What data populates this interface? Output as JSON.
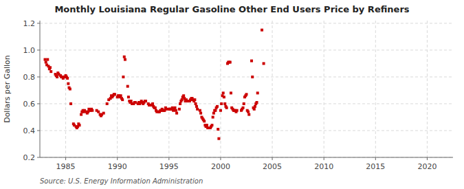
{
  "chart_data": {
    "type": "scatter",
    "title": "Monthly Louisiana Regular Gasoline Other End Users Price by Refiners",
    "y_label": "Dollars per Gallon",
    "source": "Source: U.S. Energy Information Administration",
    "color": "#cc0000",
    "marker": "square",
    "grid": true,
    "xlim": [
      1982.5,
      2022.5
    ],
    "ylim": [
      0.2,
      1.22
    ],
    "xticks": [
      1985,
      1990,
      1995,
      2000,
      2005,
      2010,
      2015,
      2020
    ],
    "yticks": [
      0.2,
      0.4,
      0.6,
      0.8,
      {
        "value": 1.0,
        "label": "1.0"
      },
      1.2
    ],
    "x": [
      1983.0,
      1983.08,
      1983.17,
      1983.25,
      1983.33,
      1983.42,
      1983.5,
      1983.58,
      1984.0,
      1984.08,
      1984.17,
      1984.25,
      1984.33,
      1984.5,
      1984.58,
      1984.67,
      1984.75,
      1984.83,
      1984.92,
      1985.0,
      1985.08,
      1985.17,
      1985.25,
      1985.33,
      1985.42,
      1985.5,
      1985.75,
      1985.83,
      1986.0,
      1986.08,
      1986.17,
      1986.25,
      1986.33,
      1986.5,
      1986.58,
      1986.67,
      1986.75,
      1986.83,
      1987.0,
      1987.08,
      1987.17,
      1987.25,
      1987.33,
      1987.42,
      1987.5,
      1987.58,
      1988.0,
      1988.17,
      1988.33,
      1988.42,
      1988.5,
      1988.67,
      1989.0,
      1989.17,
      1989.33,
      1989.42,
      1989.5,
      1989.58,
      1989.67,
      1989.75,
      1990.0,
      1990.08,
      1990.17,
      1990.25,
      1990.33,
      1990.42,
      1990.5,
      1990.58,
      1990.67,
      1990.75,
      1991.0,
      1991.08,
      1991.17,
      1991.25,
      1991.33,
      1991.42,
      1991.5,
      1991.58,
      1991.67,
      1991.75,
      1992.0,
      1992.08,
      1992.17,
      1992.25,
      1992.33,
      1992.42,
      1992.5,
      1992.58,
      1992.67,
      1992.75,
      1993.0,
      1993.08,
      1993.17,
      1993.25,
      1993.33,
      1993.42,
      1993.5,
      1993.58,
      1993.67,
      1993.75,
      1993.83,
      1994.0,
      1994.08,
      1994.17,
      1994.25,
      1994.33,
      1994.42,
      1994.5,
      1994.58,
      1994.67,
      1994.75,
      1995.0,
      1995.08,
      1995.17,
      1995.25,
      1995.33,
      1995.42,
      1995.5,
      1995.58,
      1995.67,
      1995.75,
      1996.0,
      1996.08,
      1996.17,
      1996.25,
      1996.33,
      1996.42,
      1996.5,
      1996.58,
      1996.67,
      1996.75,
      1997.0,
      1997.08,
      1997.17,
      1997.25,
      1997.33,
      1997.42,
      1997.5,
      1997.58,
      1997.67,
      1997.75,
      1998.0,
      1998.08,
      1998.17,
      1998.25,
      1998.33,
      1998.42,
      1998.5,
      1998.58,
      1998.67,
      1998.75,
      1999.0,
      1999.08,
      1999.17,
      1999.25,
      1999.33,
      1999.42,
      1999.5,
      1999.58,
      1999.67,
      1999.75,
      1999.83,
      2000.0,
      2000.08,
      2000.17,
      2000.25,
      2000.33,
      2000.42,
      2000.5,
      2000.58,
      2000.67,
      2000.75,
      2000.83,
      2000.92,
      2001.0,
      2001.08,
      2001.17,
      2001.25,
      2001.33,
      2001.42,
      2001.5,
      2001.58,
      2002.0,
      2002.08,
      2002.17,
      2002.25,
      2002.33,
      2002.42,
      2002.5,
      2002.58,
      2002.67,
      2002.75,
      2003.0,
      2003.08,
      2003.17,
      2003.25,
      2003.33,
      2003.42,
      2003.5,
      2003.58,
      2004.0,
      2004.17
    ],
    "values": [
      0.93,
      0.91,
      0.89,
      0.93,
      0.88,
      0.86,
      0.87,
      0.84,
      0.82,
      0.81,
      0.8,
      0.83,
      0.82,
      0.81,
      0.8,
      0.8,
      0.79,
      0.8,
      0.8,
      0.81,
      0.8,
      0.79,
      0.75,
      0.72,
      0.71,
      0.6,
      0.45,
      0.44,
      0.43,
      0.42,
      0.43,
      0.45,
      0.44,
      0.52,
      0.54,
      0.55,
      0.54,
      0.55,
      0.54,
      0.53,
      0.54,
      0.56,
      0.55,
      0.55,
      0.56,
      0.55,
      0.55,
      0.54,
      0.52,
      0.51,
      0.52,
      0.53,
      0.6,
      0.63,
      0.64,
      0.66,
      0.65,
      0.66,
      0.67,
      0.67,
      0.65,
      0.66,
      0.66,
      0.65,
      0.66,
      0.64,
      0.63,
      0.8,
      0.95,
      0.93,
      0.73,
      0.65,
      0.62,
      0.61,
      0.62,
      0.6,
      0.6,
      0.6,
      0.61,
      0.61,
      0.6,
      0.61,
      0.6,
      0.61,
      0.62,
      0.61,
      0.6,
      0.61,
      0.62,
      0.62,
      0.6,
      0.59,
      0.59,
      0.59,
      0.59,
      0.6,
      0.58,
      0.57,
      0.57,
      0.55,
      0.54,
      0.54,
      0.54,
      0.55,
      0.55,
      0.56,
      0.55,
      0.55,
      0.55,
      0.57,
      0.56,
      0.56,
      0.56,
      0.56,
      0.56,
      0.57,
      0.55,
      0.56,
      0.57,
      0.55,
      0.53,
      0.56,
      0.6,
      0.62,
      0.63,
      0.65,
      0.66,
      0.64,
      0.62,
      0.63,
      0.62,
      0.62,
      0.63,
      0.64,
      0.64,
      0.63,
      0.62,
      0.63,
      0.6,
      0.58,
      0.56,
      0.55,
      0.53,
      0.5,
      0.49,
      0.48,
      0.47,
      0.44,
      0.43,
      0.44,
      0.42,
      0.42,
      0.43,
      0.44,
      0.5,
      0.53,
      0.55,
      0.55,
      0.57,
      0.58,
      0.41,
      0.34,
      0.55,
      0.6,
      0.66,
      0.68,
      0.65,
      0.6,
      0.58,
      0.57,
      0.9,
      0.91,
      0.91,
      0.91,
      0.68,
      0.57,
      0.56,
      0.55,
      0.55,
      0.55,
      0.54,
      0.55,
      0.55,
      0.56,
      0.57,
      0.6,
      0.65,
      0.66,
      0.67,
      0.55,
      0.54,
      0.52,
      0.92,
      0.8,
      0.57,
      0.56,
      0.58,
      0.6,
      0.61,
      0.68,
      1.15,
      0.9
    ]
  }
}
